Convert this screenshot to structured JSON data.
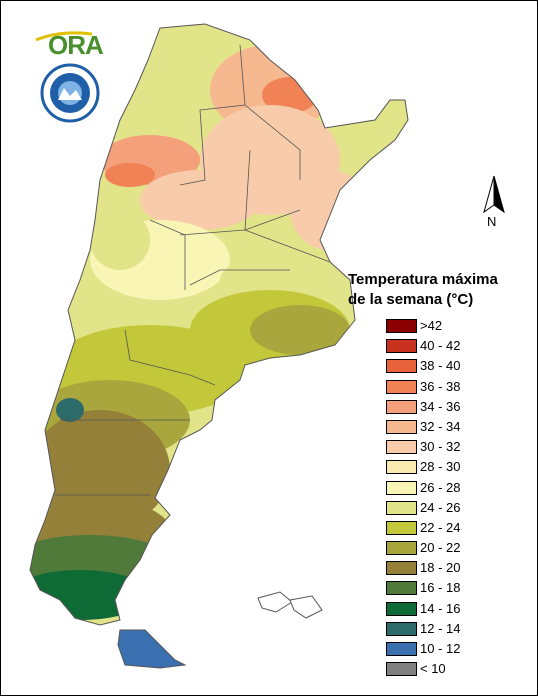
{
  "logo": {
    "text": "ORA",
    "accent_color": "#4a8f2e",
    "emblem_color": "#1f5fa8"
  },
  "map": {
    "country": "Argentina",
    "north_arrow_label": "N",
    "background_color": "#ffffff",
    "border_color": "#555555"
  },
  "legend": {
    "title_line1": "Temperatura máxima",
    "title_line2": "de la semana (°C)",
    "items": [
      {
        "label": ">42",
        "color": "#8b0000"
      },
      {
        "label": "40 - 42",
        "color": "#c8321e"
      },
      {
        "label": "38 - 40",
        "color": "#e8633a"
      },
      {
        "label": "36 - 38",
        "color": "#f08255"
      },
      {
        "label": "34 - 36",
        "color": "#f4a07a"
      },
      {
        "label": "32 - 34",
        "color": "#f6b88f"
      },
      {
        "label": "30 - 32",
        "color": "#f8ccaa"
      },
      {
        "label": "28 - 30",
        "color": "#faebb0"
      },
      {
        "label": "26 - 28",
        "color": "#f8f5b5"
      },
      {
        "label": "24 - 26",
        "color": "#e2e48a"
      },
      {
        "label": "22 - 24",
        "color": "#c3c83a"
      },
      {
        "label": "20 - 22",
        "color": "#a8a63c"
      },
      {
        "label": "18 - 20",
        "color": "#95803a"
      },
      {
        "label": "16 - 18",
        "color": "#4f7a3a"
      },
      {
        "label": "14 - 16",
        "color": "#0f6b35"
      },
      {
        "label": "12 - 14",
        "color": "#2d6a6a"
      },
      {
        "label": "10 - 12",
        "color": "#3a6fb0"
      },
      {
        "label": "< 10",
        "color": "#808080"
      }
    ]
  }
}
